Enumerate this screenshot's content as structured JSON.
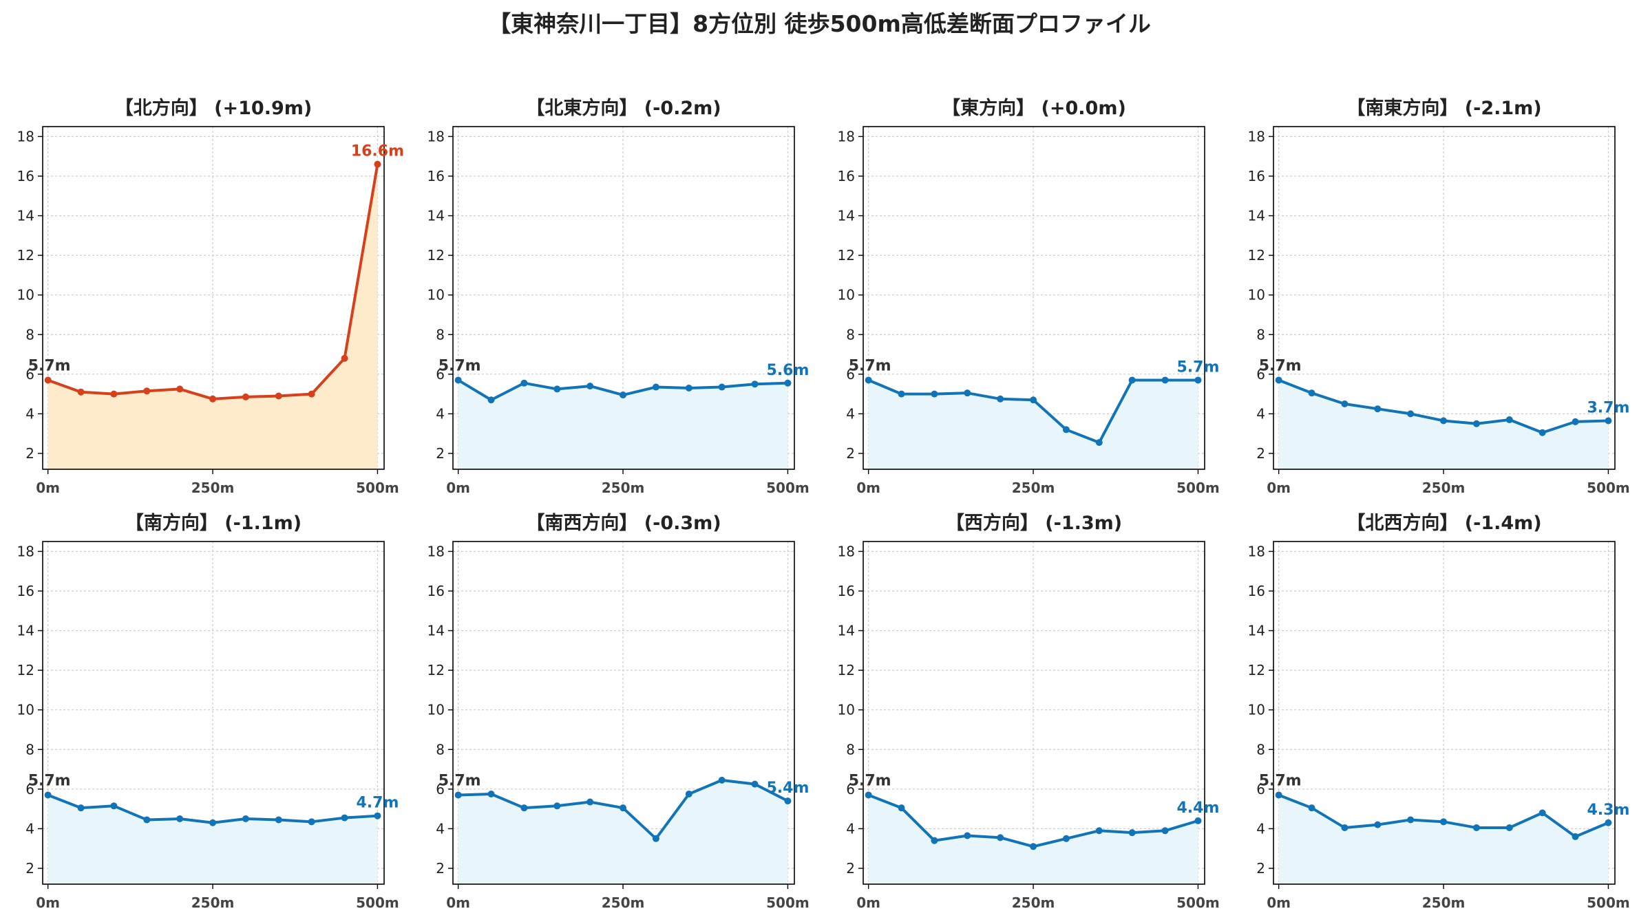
{
  "title": "【東神奈川一丁目】8方位別 徒歩500m高低差断面プロファイル",
  "colors": {
    "up": "#d6401a",
    "up_fill": "#fdebcc",
    "down": "#1274b8",
    "down_fill": "#e8f5fb",
    "grid": "#cccccc",
    "frame": "#000000"
  },
  "chart_data": [
    {
      "type": "area",
      "title": "【北方向】 (+10.9m)",
      "trend": "up",
      "x": [
        0,
        50,
        100,
        150,
        200,
        250,
        300,
        350,
        400,
        450,
        500
      ],
      "y": [
        5.7,
        5.1,
        5.0,
        5.15,
        5.25,
        4.75,
        4.85,
        4.9,
        5.0,
        6.8,
        16.6
      ],
      "start_label": "5.7m",
      "end_label": "16.6m",
      "xticks": [
        0,
        250,
        500
      ],
      "xtick_labels": [
        "0m",
        "250m",
        "500m"
      ],
      "yticks": [
        2,
        4,
        6,
        8,
        10,
        12,
        14,
        16,
        18
      ],
      "ylim": [
        1.2,
        18.5
      ],
      "xlim": [
        -8,
        510
      ],
      "grid": true
    },
    {
      "type": "area",
      "title": "【北東方向】 (-0.2m)",
      "trend": "down",
      "x": [
        0,
        50,
        100,
        150,
        200,
        250,
        300,
        350,
        400,
        450,
        500
      ],
      "y": [
        5.7,
        4.7,
        5.55,
        5.25,
        5.4,
        4.95,
        5.35,
        5.3,
        5.35,
        5.5,
        5.55
      ],
      "start_label": "5.7m",
      "end_label": "5.6m",
      "xticks": [
        0,
        250,
        500
      ],
      "xtick_labels": [
        "0m",
        "250m",
        "500m"
      ],
      "yticks": [
        2,
        4,
        6,
        8,
        10,
        12,
        14,
        16,
        18
      ],
      "ylim": [
        1.2,
        18.5
      ],
      "xlim": [
        -8,
        510
      ],
      "grid": true
    },
    {
      "type": "area",
      "title": "【東方向】 (+0.0m)",
      "trend": "down",
      "x": [
        0,
        50,
        100,
        150,
        200,
        250,
        300,
        350,
        400,
        450,
        500
      ],
      "y": [
        5.7,
        5.0,
        5.0,
        5.05,
        4.75,
        4.7,
        3.2,
        2.55,
        5.7,
        5.7,
        5.7
      ],
      "start_label": "5.7m",
      "end_label": "5.7m",
      "xticks": [
        0,
        250,
        500
      ],
      "xtick_labels": [
        "0m",
        "250m",
        "500m"
      ],
      "yticks": [
        2,
        4,
        6,
        8,
        10,
        12,
        14,
        16,
        18
      ],
      "ylim": [
        1.2,
        18.5
      ],
      "xlim": [
        -8,
        510
      ],
      "grid": true
    },
    {
      "type": "area",
      "title": "【南東方向】 (-2.1m)",
      "trend": "down",
      "x": [
        0,
        50,
        100,
        150,
        200,
        250,
        300,
        350,
        400,
        450,
        500
      ],
      "y": [
        5.7,
        5.05,
        4.5,
        4.25,
        4.0,
        3.65,
        3.5,
        3.7,
        3.05,
        3.6,
        3.65
      ],
      "start_label": "5.7m",
      "end_label": "3.7m",
      "xticks": [
        0,
        250,
        500
      ],
      "xtick_labels": [
        "0m",
        "250m",
        "500m"
      ],
      "yticks": [
        2,
        4,
        6,
        8,
        10,
        12,
        14,
        16,
        18
      ],
      "ylim": [
        1.2,
        18.5
      ],
      "xlim": [
        -8,
        510
      ],
      "grid": true
    },
    {
      "type": "area",
      "title": "【南方向】 (-1.1m)",
      "trend": "down",
      "x": [
        0,
        50,
        100,
        150,
        200,
        250,
        300,
        350,
        400,
        450,
        500
      ],
      "y": [
        5.7,
        5.05,
        5.15,
        4.45,
        4.5,
        4.3,
        4.5,
        4.45,
        4.35,
        4.55,
        4.65
      ],
      "start_label": "5.7m",
      "end_label": "4.7m",
      "xticks": [
        0,
        250,
        500
      ],
      "xtick_labels": [
        "0m",
        "250m",
        "500m"
      ],
      "yticks": [
        2,
        4,
        6,
        8,
        10,
        12,
        14,
        16,
        18
      ],
      "ylim": [
        1.2,
        18.5
      ],
      "xlim": [
        -8,
        510
      ],
      "grid": true
    },
    {
      "type": "area",
      "title": "【南西方向】 (-0.3m)",
      "trend": "down",
      "x": [
        0,
        50,
        100,
        150,
        200,
        250,
        300,
        350,
        400,
        450,
        500
      ],
      "y": [
        5.7,
        5.75,
        5.05,
        5.15,
        5.35,
        5.05,
        3.5,
        5.75,
        6.45,
        6.25,
        5.4
      ],
      "start_label": "5.7m",
      "end_label": "5.4m",
      "xticks": [
        0,
        250,
        500
      ],
      "xtick_labels": [
        "0m",
        "250m",
        "500m"
      ],
      "yticks": [
        2,
        4,
        6,
        8,
        10,
        12,
        14,
        16,
        18
      ],
      "ylim": [
        1.2,
        18.5
      ],
      "xlim": [
        -8,
        510
      ],
      "grid": true
    },
    {
      "type": "area",
      "title": "【西方向】 (-1.3m)",
      "trend": "down",
      "x": [
        0,
        50,
        100,
        150,
        200,
        250,
        300,
        350,
        400,
        450,
        500
      ],
      "y": [
        5.7,
        5.05,
        3.4,
        3.65,
        3.55,
        3.1,
        3.5,
        3.9,
        3.8,
        3.9,
        4.4
      ],
      "start_label": "5.7m",
      "end_label": "4.4m",
      "xticks": [
        0,
        250,
        500
      ],
      "xtick_labels": [
        "0m",
        "250m",
        "500m"
      ],
      "yticks": [
        2,
        4,
        6,
        8,
        10,
        12,
        14,
        16,
        18
      ],
      "ylim": [
        1.2,
        18.5
      ],
      "xlim": [
        -8,
        510
      ],
      "grid": true
    },
    {
      "type": "area",
      "title": "【北西方向】 (-1.4m)",
      "trend": "down",
      "x": [
        0,
        50,
        100,
        150,
        200,
        250,
        300,
        350,
        400,
        450,
        500
      ],
      "y": [
        5.7,
        5.05,
        4.05,
        4.2,
        4.45,
        4.35,
        4.05,
        4.05,
        4.8,
        3.6,
        4.3
      ],
      "start_label": "5.7m",
      "end_label": "4.3m",
      "xticks": [
        0,
        250,
        500
      ],
      "xtick_labels": [
        "0m",
        "250m",
        "500m"
      ],
      "yticks": [
        2,
        4,
        6,
        8,
        10,
        12,
        14,
        16,
        18
      ],
      "ylim": [
        1.2,
        18.5
      ],
      "xlim": [
        -8,
        510
      ],
      "grid": true
    }
  ]
}
